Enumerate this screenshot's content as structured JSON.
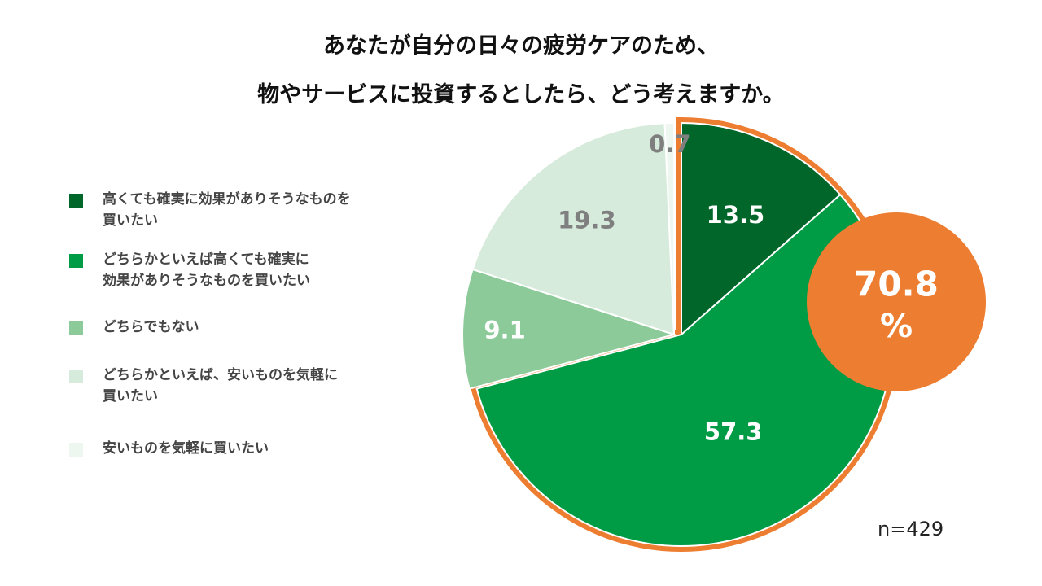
{
  "title": {
    "line1": "あなたが自分の日々の疲労ケアのため、",
    "line2": "物やサービスに投資するとしたら、どう考えますか。"
  },
  "legend": [
    {
      "label": "高くても確実に効果がありそうなものを\n買いたい",
      "color": "#006629"
    },
    {
      "label": "どちらかといえば高くても確実に\n効果がありそうなものを買いたい",
      "color": "#009b45"
    },
    {
      "label": "どちらでもない",
      "color": "#8ccb99"
    },
    {
      "label": "どちらかといえば、安いものを気軽に\n買いたい",
      "color": "#d6ebdb"
    },
    {
      "label": "安いものを気軽に買いたい",
      "color": "#eef6f0"
    }
  ],
  "sample_size": "n=429",
  "highlight": {
    "value": "70.8",
    "unit": "%",
    "color": "#ed7d31"
  },
  "chart_data": {
    "type": "pie",
    "title": "あなたが自分の日々の疲労ケアのため、物やサービスに投資するとしたら、どう考えますか。",
    "categories": [
      "高くても確実に効果がありそうなものを買いたい",
      "どちらかといえば高くても確実に効果がありそうなものを買いたい",
      "どちらでもない",
      "どちらかといえば、安いものを気軽に買いたい",
      "安いものを気軽に買いたい"
    ],
    "values": [
      13.5,
      57.3,
      9.1,
      19.3,
      0.7
    ],
    "value_labels": [
      "13.5",
      "57.3",
      "9.1",
      "19.3",
      "0.7"
    ],
    "colors": [
      "#006629",
      "#009b45",
      "#8ccb99",
      "#d6ebdb",
      "#eef6f0"
    ],
    "label_colors": [
      "#ffffff",
      "#ffffff",
      "#ffffff",
      "#7f7f7f",
      "#7f7f7f"
    ],
    "exploded_group": [
      0,
      1
    ],
    "exploded_group_total": 70.8,
    "legend_position": "left"
  }
}
